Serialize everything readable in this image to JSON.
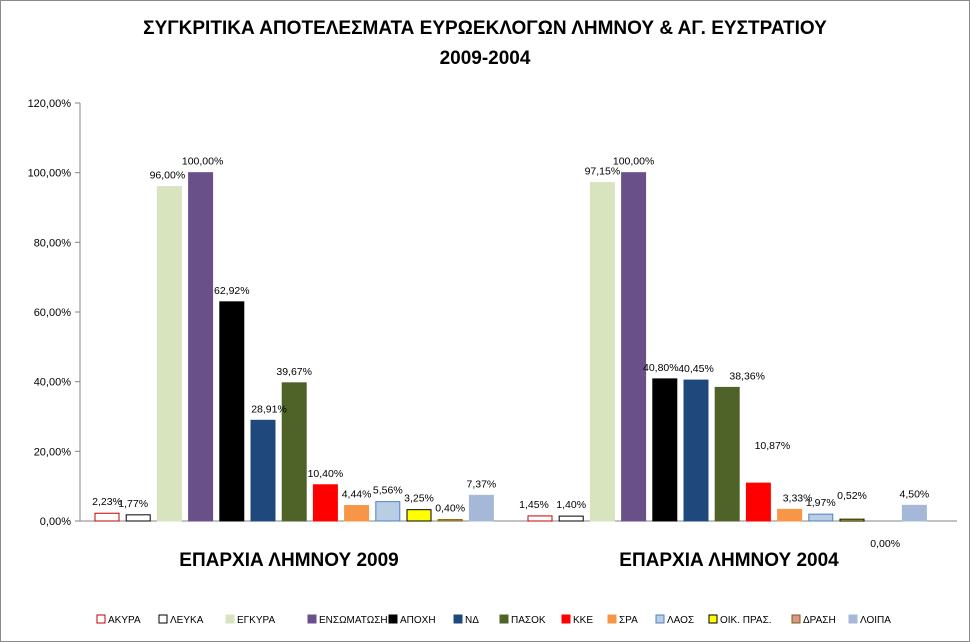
{
  "chart_data": {
    "type": "bar",
    "title": "ΣΥΓΚΡΙΤΙΚΑ ΑΠΟΤΕΛΕΣΜΑΤΑ ΕΥΡΩΕΚΛΟΓΩΝ ΛΗΜΝΟΥ & ΑΓ. ΕΥΣΤΡΑΤΙΟΥ",
    "subtitle": "2009-2004",
    "categories": [
      "ΕΠΑΡΧΙΑ ΛΗΜΝΟΥ 2009",
      "ΕΠΑΡΧΙΑ ΛΗΜΝΟΥ 2004"
    ],
    "ylim": [
      0,
      120
    ],
    "yticks": [
      0,
      20,
      40,
      60,
      80,
      100,
      120
    ],
    "ytick_labels": [
      "0,00%",
      "20,00%",
      "40,00%",
      "60,00%",
      "80,00%",
      "100,00%",
      "120,00%"
    ],
    "grid": false,
    "legend_position": "bottom",
    "series": [
      {
        "name": "ΑΚΥΡΑ",
        "color": "#ffffff",
        "stroke": "#c00000",
        "values": [
          2.23,
          1.45
        ],
        "labels": [
          "2,23%",
          "1,45%"
        ]
      },
      {
        "name": "ΛΕΥΚΑ",
        "color": "#ffffff",
        "stroke": "#000000",
        "values": [
          1.77,
          1.4
        ],
        "labels": [
          "1,77%",
          "1,40%"
        ]
      },
      {
        "name": "ΕΓΚΥΡΑ",
        "color": "#d7e4bd",
        "stroke": "#d7e4bd",
        "values": [
          96.0,
          97.15
        ],
        "labels": [
          "96,00%",
          "97,15%"
        ]
      },
      {
        "name": "ΕΝΣΩΜΑΤΩΣΗ",
        "color": "#6a5088",
        "stroke": "#6a5088",
        "values": [
          100.0,
          100.0
        ],
        "labels": [
          "100,00%",
          "100,00%"
        ]
      },
      {
        "name": "ΑΠΟΧΗ",
        "color": "#000000",
        "stroke": "#000000",
        "values": [
          62.92,
          40.8
        ],
        "labels": [
          "62,92%",
          "40,80%"
        ]
      },
      {
        "name": "ΝΔ",
        "color": "#1f497d",
        "stroke": "#1f497d",
        "values": [
          28.91,
          40.45
        ],
        "labels": [
          "28,91%",
          "40,45%"
        ]
      },
      {
        "name": "ΠΑΣΟΚ",
        "color": "#4f6228",
        "stroke": "#4f6228",
        "values": [
          39.67,
          38.36
        ],
        "labels": [
          "39,67%",
          "38,36%"
        ]
      },
      {
        "name": "ΚΚΕ",
        "color": "#ff0000",
        "stroke": "#ff0000",
        "values": [
          10.4,
          10.87
        ],
        "labels": [
          "10,40%",
          "10,87%"
        ]
      },
      {
        "name": "ΣΡΑ",
        "color": "#f79646",
        "stroke": "#f79646",
        "values": [
          4.44,
          3.33
        ],
        "labels": [
          "4,44%",
          "3,33%"
        ]
      },
      {
        "name": "ΛΑΟΣ",
        "color": "#b9cde5",
        "stroke": "#4f81bd",
        "values": [
          5.56,
          1.97
        ],
        "labels": [
          "5,56%",
          "1,97%"
        ]
      },
      {
        "name": "ΟΙΚ. ΠΡΑΣ.",
        "color": "#ffff00",
        "stroke": "#000000",
        "values": [
          3.25,
          0.52
        ],
        "labels": [
          "3,25%",
          "0,52%"
        ]
      },
      {
        "name": "ΔΡΑΣΗ",
        "color": "#d99694",
        "stroke": "#7f6000",
        "values": [
          0.4,
          0.0
        ],
        "labels": [
          "0,40%",
          "0,00%"
        ]
      },
      {
        "name": "ΛΟΙΠΑ",
        "color": "#a6b8d8",
        "stroke": "#a6b8d8",
        "values": [
          7.37,
          4.5
        ],
        "labels": [
          "7,37%",
          "4,50%"
        ]
      }
    ]
  }
}
